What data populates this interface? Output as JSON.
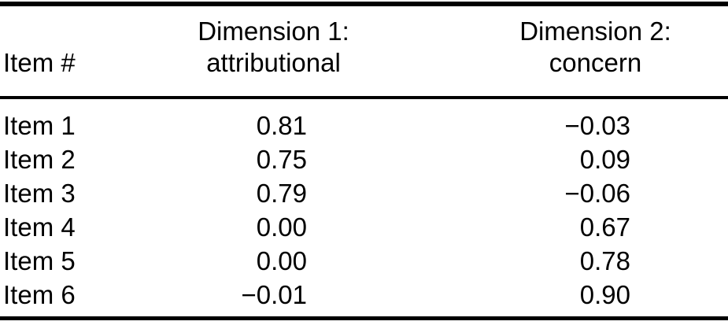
{
  "table": {
    "columns": [
      {
        "label": "Item #"
      },
      {
        "line1": "Dimension 1:",
        "line2": "attributional"
      },
      {
        "line1": "Dimension 2:",
        "line2": "concern"
      }
    ],
    "rows": [
      {
        "item": "Item 1",
        "dim1": "0.81",
        "dim2": "−0.03"
      },
      {
        "item": "Item 2",
        "dim1": "0.75",
        "dim2": "0.09"
      },
      {
        "item": "Item 3",
        "dim1": "0.79",
        "dim2": "−0.06"
      },
      {
        "item": "Item 4",
        "dim1": "0.00",
        "dim2": "0.67"
      },
      {
        "item": "Item 5",
        "dim1": "0.00",
        "dim2": "0.78"
      },
      {
        "item": "Item 6",
        "dim1": "−0.01",
        "dim2": "0.90"
      }
    ],
    "colors": {
      "background": "#ffffff",
      "text": "#000000",
      "rule": "#000000"
    }
  }
}
